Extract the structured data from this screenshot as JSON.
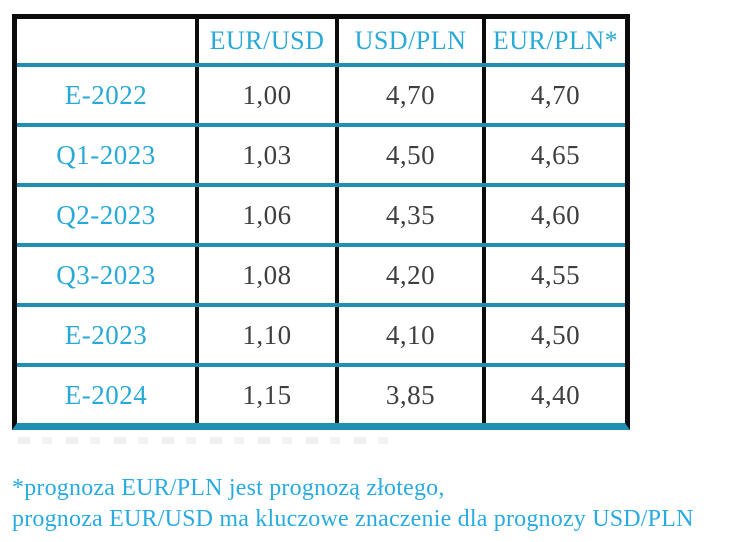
{
  "table": {
    "headers": [
      "",
      "EUR/USD",
      "USD/PLN",
      "EUR/PLN*"
    ],
    "rows": [
      {
        "label": "E-2022",
        "values": [
          "1,00",
          "4,70",
          "4,70"
        ]
      },
      {
        "label": "Q1-2023",
        "values": [
          "1,03",
          "4,50",
          "4,65"
        ]
      },
      {
        "label": "Q2-2023",
        "values": [
          "1,06",
          "4,35",
          "4,60"
        ]
      },
      {
        "label": "Q3-2023",
        "values": [
          "1,08",
          "4,20",
          "4,55"
        ]
      },
      {
        "label": "E-2023",
        "values": [
          "1,10",
          "4,10",
          "4,50"
        ]
      },
      {
        "label": "E-2024",
        "values": [
          "1,15",
          "3,85",
          "4,40"
        ]
      }
    ]
  },
  "footnote": {
    "line1": "*prognoza EUR/PLN jest prognozą złotego,",
    "line2": "prognoza EUR/USD ma kluczowe znaczenie dla prognozy USD/PLN"
  },
  "colors": {
    "accent_cyan_text": "#29a9d6",
    "footnote_cyan": "#29abe2",
    "separator_teal": "#1f8fb2",
    "border_black": "#0b0b0b",
    "value_gray": "#3f3f3f"
  }
}
